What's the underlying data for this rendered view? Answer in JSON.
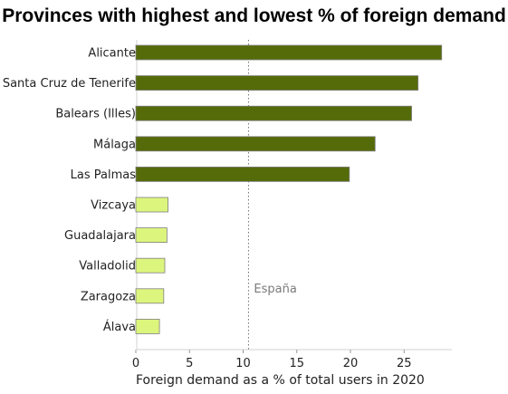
{
  "chart_data": {
    "type": "bar",
    "orientation": "horizontal",
    "title": "Provinces with highest and lowest % of foreign demand",
    "xlabel": "Foreign demand as a % of total users in 2020",
    "ylabel": "",
    "xlim": [
      0,
      30
    ],
    "xticks": [
      0,
      5,
      10,
      15,
      20,
      25
    ],
    "categories": [
      "Alicante",
      "Santa Cruz de Tenerife",
      "Balears (Illes)",
      "Málaga",
      "Las Palmas",
      "Vizcaya",
      "Guadalajara",
      "Valladolid",
      "Zaragoza",
      "Álava"
    ],
    "values": [
      28.5,
      26.3,
      25.7,
      22.3,
      19.9,
      3.0,
      2.9,
      2.7,
      2.6,
      2.2
    ],
    "groups": [
      "highest",
      "highest",
      "highest",
      "highest",
      "highest",
      "lowest",
      "lowest",
      "lowest",
      "lowest",
      "lowest"
    ],
    "colors": {
      "highest": "#556b0a",
      "lowest": "#dcf57d",
      "bar_border": "#7f7f7f",
      "reference_line": "#6e6e6e"
    },
    "reference_line": {
      "label": "España",
      "value": 10.5,
      "style": "dotted"
    },
    "grid": false,
    "legend": "none"
  }
}
